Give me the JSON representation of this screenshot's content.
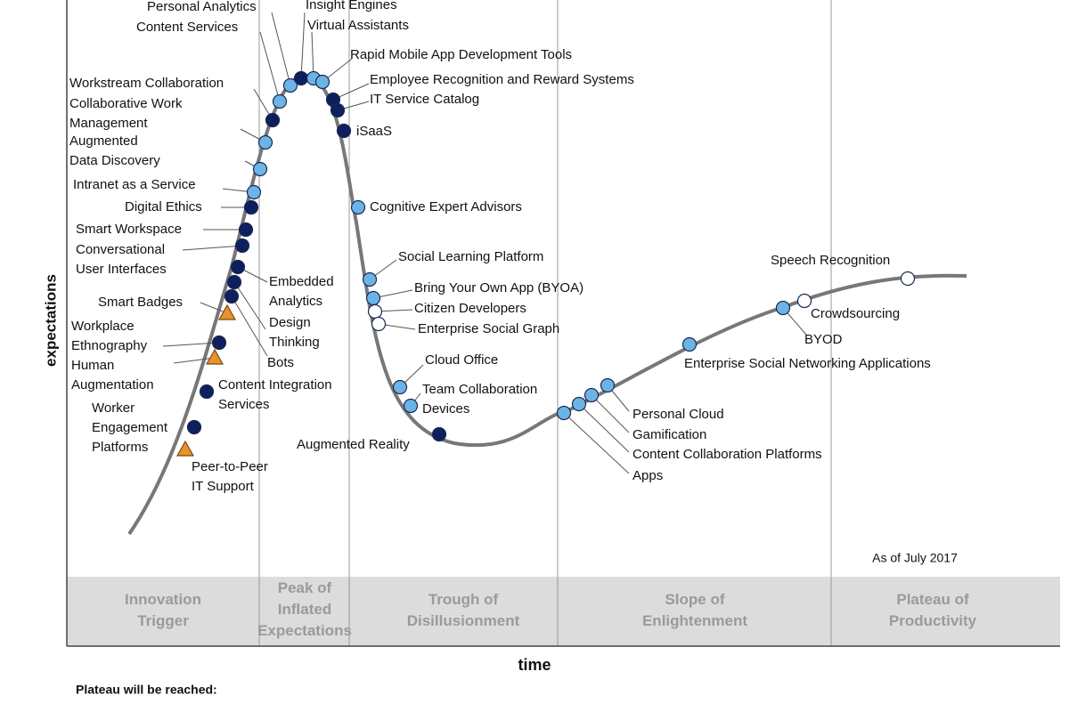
{
  "axes": {
    "y_label": "expectations",
    "x_label": "time"
  },
  "technologies": [
    {
      "label": "Personal Analytics"
    },
    {
      "label": "Content Services"
    },
    {
      "label": "Insight Engines"
    },
    {
      "label": "Virtual Assistants"
    },
    {
      "label": "Rapid Mobile App Development Tools"
    },
    {
      "label": "Employee Recognition and Reward Systems"
    },
    {
      "label": "IT Service Catalog"
    },
    {
      "label": "iSaaS"
    },
    {
      "label": "Workstream Collaboration"
    },
    {
      "label": "Collaborative Work Management"
    },
    {
      "label": "Augmented Data Discovery"
    },
    {
      "label": "Intranet as a Service"
    },
    {
      "label": "Digital Ethics"
    },
    {
      "label": "Smart Workspace"
    },
    {
      "label": "Conversational User Interfaces"
    },
    {
      "label": "Embedded Analytics"
    },
    {
      "label": "Design Thinking"
    },
    {
      "label": "Bots"
    },
    {
      "label": "Smart Badges"
    },
    {
      "label": "Workplace Ethnography"
    },
    {
      "label": "Human Augmentation"
    },
    {
      "label": "Content Integration Services"
    },
    {
      "label": "Worker Engagement Platforms"
    },
    {
      "label": "Peer-to-Peer IT Support"
    },
    {
      "label": "Cognitive Expert Advisors"
    },
    {
      "label": "Social Learning Platform"
    },
    {
      "label": "Bring Your Own App (BYOA)"
    },
    {
      "label": "Citizen Developers"
    },
    {
      "label": "Enterprise Social Graph"
    },
    {
      "label": "Cloud Office"
    },
    {
      "label": "Team Collaboration Devices"
    },
    {
      "label": "Augmented Reality"
    },
    {
      "label": "Personal Cloud"
    },
    {
      "label": "Gamification"
    },
    {
      "label": "Content Collaboration Platforms"
    },
    {
      "label": "Apps"
    },
    {
      "label": "Enterprise Social Networking Applications"
    },
    {
      "label": "BYOD"
    },
    {
      "label": "Crowdsourcing"
    },
    {
      "label": "Speech Recognition"
    }
  ],
  "phases": [
    {
      "label": "Innovation Trigger"
    },
    {
      "label": "Peak of Inflated Expectations"
    },
    {
      "label": "Trough of Disillusionment"
    },
    {
      "label": "Slope of Enlightenment"
    },
    {
      "label": "Plateau of Productivity"
    }
  ],
  "note": "As of July 2017",
  "legend_title": "Plateau will be reached:"
}
